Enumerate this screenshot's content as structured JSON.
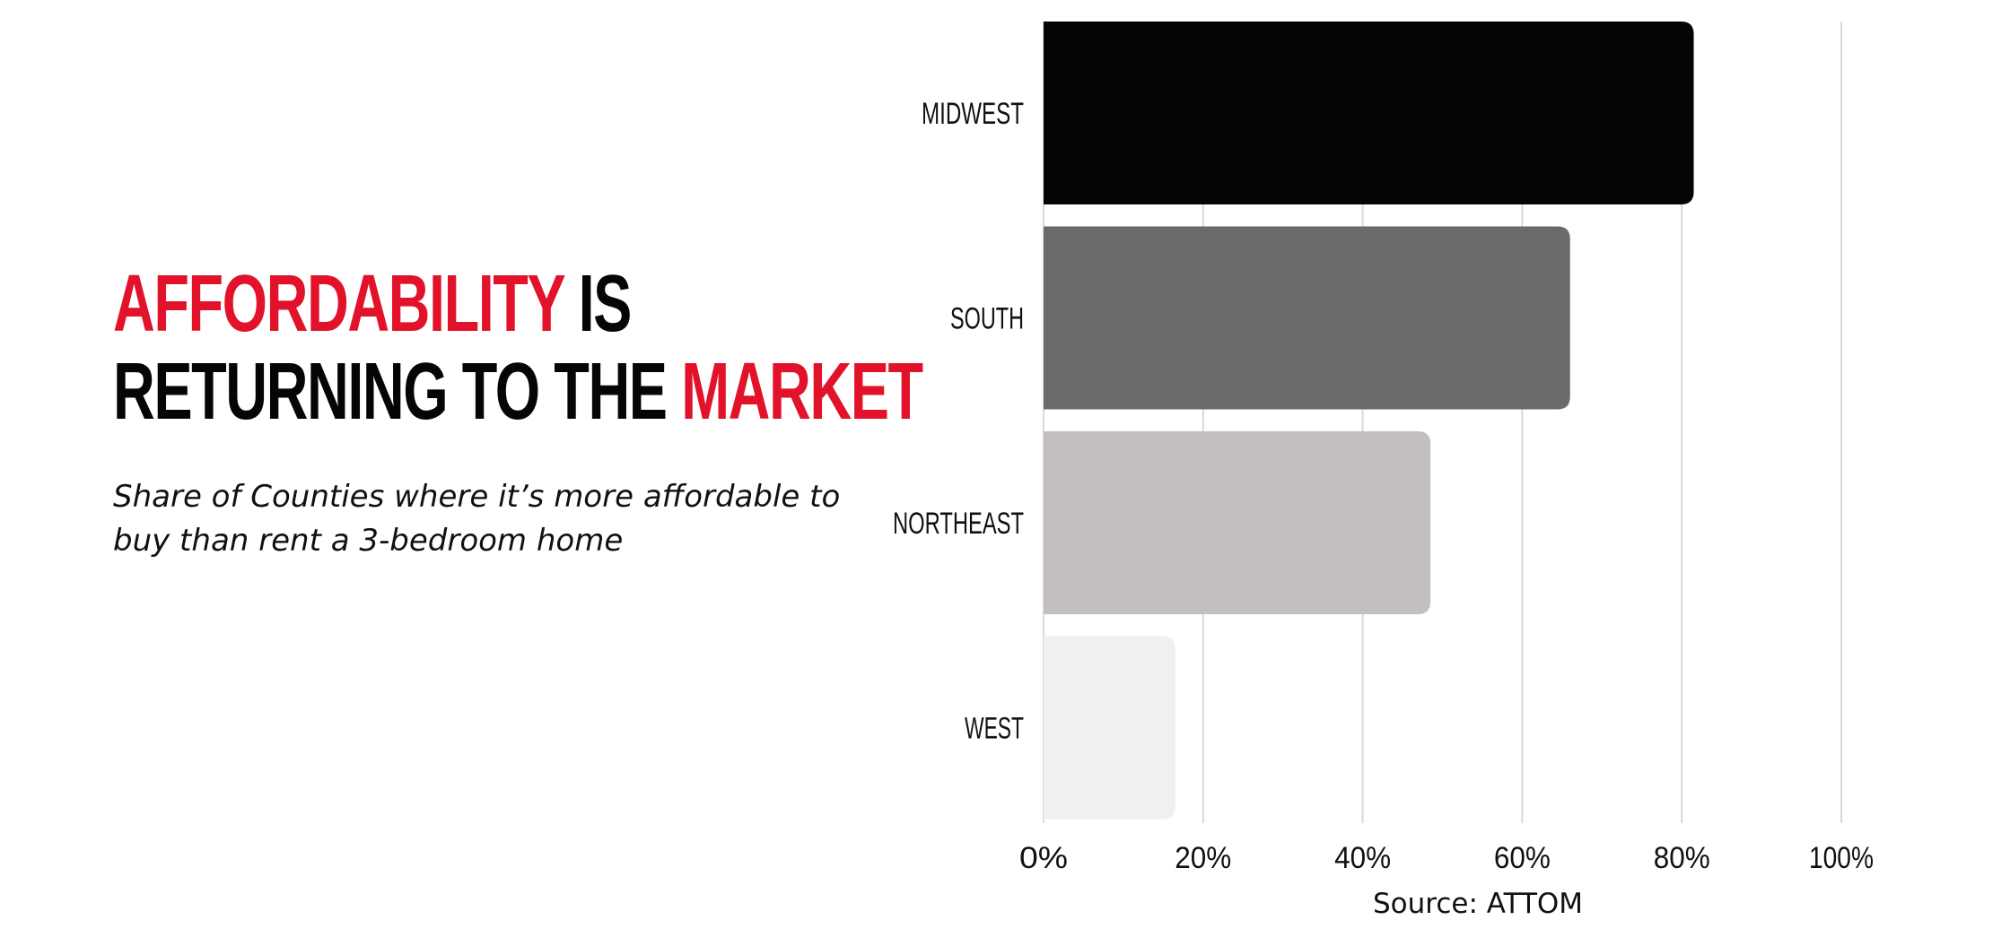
{
  "headline": {
    "part1": "AFFORDABILITY",
    "part2": " IS",
    "part3": "RETURNING TO THE ",
    "part4": "MARKET"
  },
  "subtitle": "Share of Counties where it’s more affordable to buy than rent a 3-bedroom home",
  "source": "Source: ATTOM",
  "colors": {
    "accent": "#e11229",
    "text": "#050505",
    "grid": "#d9d9d9"
  },
  "chart_data": {
    "type": "bar",
    "orientation": "horizontal",
    "categories": [
      "MIDWEST",
      "SOUTH",
      "NORTHEAST",
      "WEST"
    ],
    "values": [
      81.5,
      66,
      48.5,
      16.5
    ],
    "bar_colors": [
      "#050505",
      "#6b6a68",
      "#c2bfbe",
      "#f0f0f0"
    ],
    "xlim": [
      0,
      100
    ],
    "xticks": [
      0,
      20,
      40,
      60,
      80,
      100
    ],
    "tick_labels": [
      "0%",
      "20%",
      "40%",
      "60%",
      "80%",
      "100%"
    ],
    "grid": "vertical",
    "title": "",
    "xlabel": "",
    "ylabel": ""
  }
}
